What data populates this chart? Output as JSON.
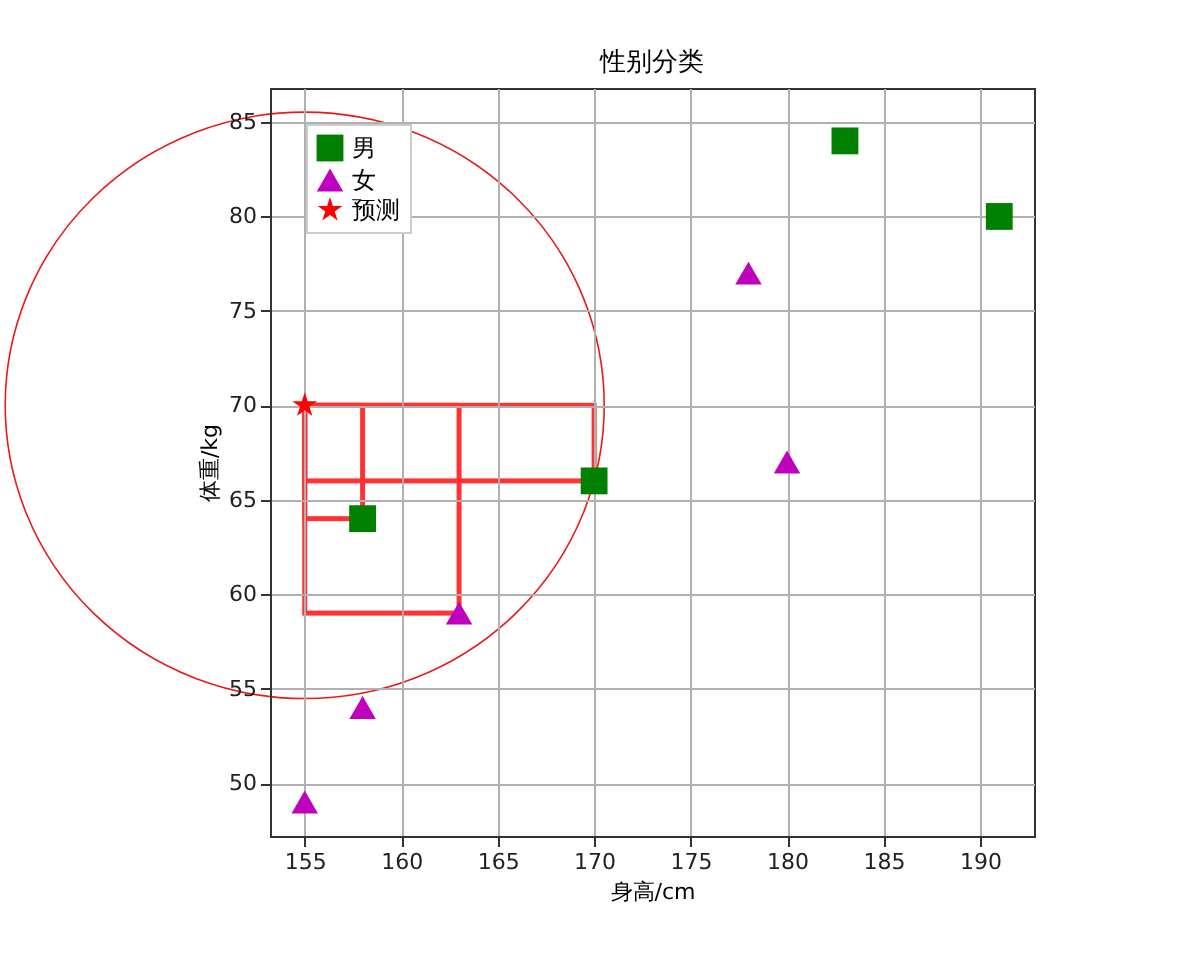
{
  "chart_data": {
    "type": "scatter",
    "title": "性别分类",
    "xlabel": "身高/cm",
    "ylabel": "体重/kg",
    "xlim": [
      153.2,
      192.8
    ],
    "ylim": [
      47.2,
      86.8
    ],
    "xticks": [
      155,
      160,
      165,
      170,
      175,
      180,
      185,
      190
    ],
    "yticks": [
      50,
      55,
      60,
      65,
      70,
      75,
      80,
      85
    ],
    "grid": true,
    "legend": "top left",
    "series": [
      {
        "name": "男",
        "color": "#008000",
        "marker": "square",
        "x": [
          158,
          170,
          183,
          191
        ],
        "values": [
          64,
          66,
          84,
          80
        ]
      },
      {
        "name": "女",
        "color": "#bf00bf",
        "marker": "triangle",
        "x": [
          155,
          158,
          163,
          178,
          180
        ],
        "values": [
          49,
          54,
          59,
          77,
          67
        ]
      },
      {
        "name": "预测",
        "color": "#ff0000",
        "marker": "star",
        "x": [
          155
        ],
        "values": [
          70
        ]
      }
    ]
  }
}
